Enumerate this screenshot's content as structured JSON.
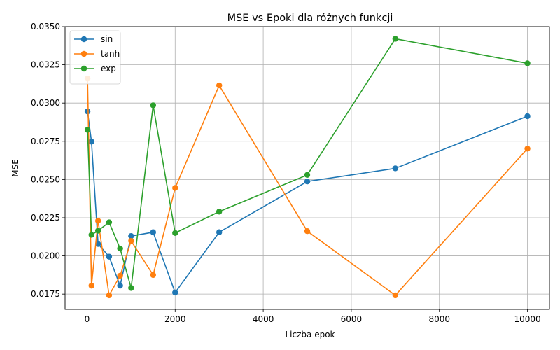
{
  "chart_data": {
    "type": "line",
    "title": "MSE vs Epoki dla różnych funkcji",
    "xlabel": "Liczba epok",
    "ylabel": "MSE",
    "xlim": [
      -500,
      10500
    ],
    "ylim": [
      0.0165,
      0.035
    ],
    "xticks": [
      0,
      2000,
      4000,
      6000,
      8000,
      10000
    ],
    "xtick_labels": [
      "0",
      "2000",
      "4000",
      "6000",
      "8000",
      "10000"
    ],
    "yticks": [
      0.0175,
      0.02,
      0.0225,
      0.025,
      0.0275,
      0.03,
      0.0325,
      0.035
    ],
    "ytick_labels": [
      "0.0175",
      "0.0200",
      "0.0225",
      "0.0250",
      "0.0275",
      "0.0300",
      "0.0325",
      "0.0350"
    ],
    "grid": true,
    "legend_position": "top-left",
    "series": [
      {
        "name": "sin",
        "color": "#1f77b4",
        "x": [
          10,
          100,
          250,
          500,
          750,
          1000,
          1500,
          2000,
          3000,
          5000,
          7000,
          10000
        ],
        "y": [
          0.02945,
          0.02748,
          0.02078,
          0.01995,
          0.01805,
          0.0213,
          0.02155,
          0.0176,
          0.02155,
          0.02487,
          0.02573,
          0.02914
        ]
      },
      {
        "name": "tanh",
        "color": "#ff7f0e",
        "x": [
          10,
          100,
          250,
          500,
          750,
          1000,
          1500,
          2000,
          3000,
          5000,
          7000,
          10000
        ],
        "y": [
          0.0316,
          0.01805,
          0.0223,
          0.01742,
          0.0187,
          0.02098,
          0.01875,
          0.02445,
          0.03115,
          0.02162,
          0.01742,
          0.02702
        ]
      },
      {
        "name": "exp",
        "color": "#2ca02c",
        "x": [
          10,
          100,
          250,
          500,
          750,
          1000,
          1500,
          2000,
          3000,
          5000,
          7000,
          10000
        ],
        "y": [
          0.02825,
          0.02138,
          0.02165,
          0.0222,
          0.02048,
          0.0179,
          0.02985,
          0.0215,
          0.0229,
          0.0253,
          0.0342,
          0.0326
        ]
      }
    ]
  }
}
